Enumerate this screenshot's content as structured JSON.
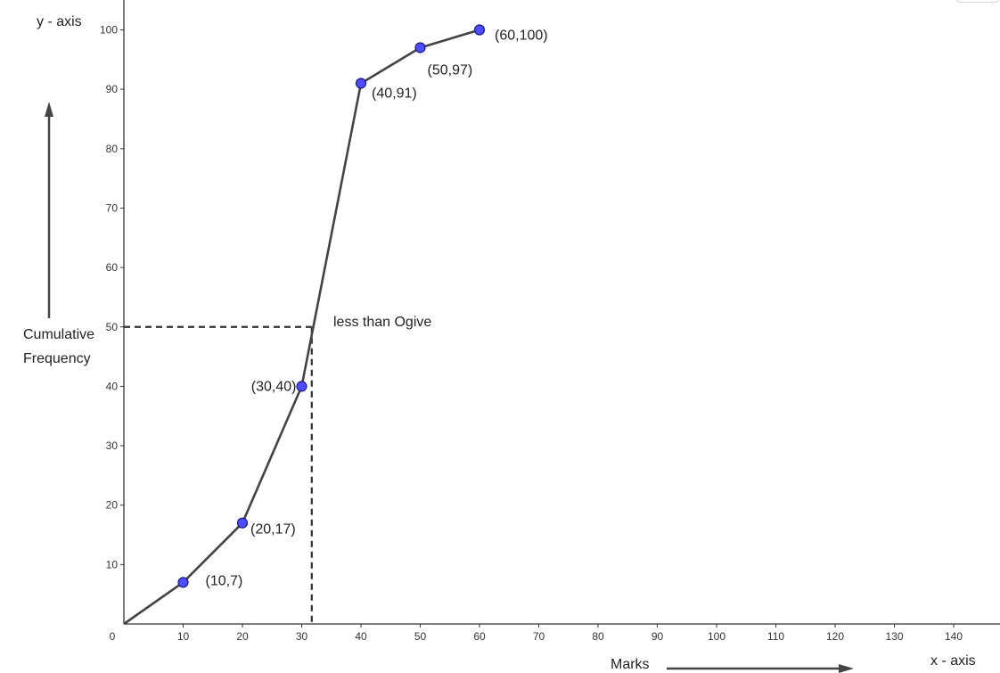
{
  "chart_data": {
    "type": "line",
    "title": "",
    "xlabel": "Marks",
    "ylabel": "Cumulative Frequency",
    "x_axis_name": "x - axis",
    "y_axis_name": "y - axis",
    "xlim": [
      0,
      148
    ],
    "ylim": [
      0,
      104
    ],
    "x_ticks": [
      0,
      10,
      20,
      30,
      40,
      50,
      60,
      70,
      80,
      90,
      100,
      110,
      120,
      130,
      140
    ],
    "y_ticks": [
      10,
      20,
      30,
      40,
      50,
      60,
      70,
      80,
      90,
      100
    ],
    "series": [
      {
        "name": "less than Ogive",
        "x": [
          0,
          10,
          20,
          30,
          40,
          50,
          60
        ],
        "y": [
          0,
          7,
          17,
          40,
          91,
          97,
          100
        ]
      }
    ],
    "points": [
      {
        "x": 10,
        "y": 7,
        "label": "(10,7)"
      },
      {
        "x": 20,
        "y": 17,
        "label": "(20,17)"
      },
      {
        "x": 30,
        "y": 40,
        "label": "(30,40)"
      },
      {
        "x": 40,
        "y": 91,
        "label": "(40,91)"
      },
      {
        "x": 50,
        "y": 97,
        "label": "(50,97)"
      },
      {
        "x": 60,
        "y": 100,
        "label": "(60,100)"
      }
    ],
    "median_guide": {
      "x": 31.7,
      "y": 50
    },
    "annotations": [
      "less than Ogive"
    ],
    "grid": false,
    "colors": {
      "line": "#444444",
      "point_fill": "#4d4dff",
      "point_stroke": "#1a1a80",
      "axis": "#333333"
    }
  }
}
